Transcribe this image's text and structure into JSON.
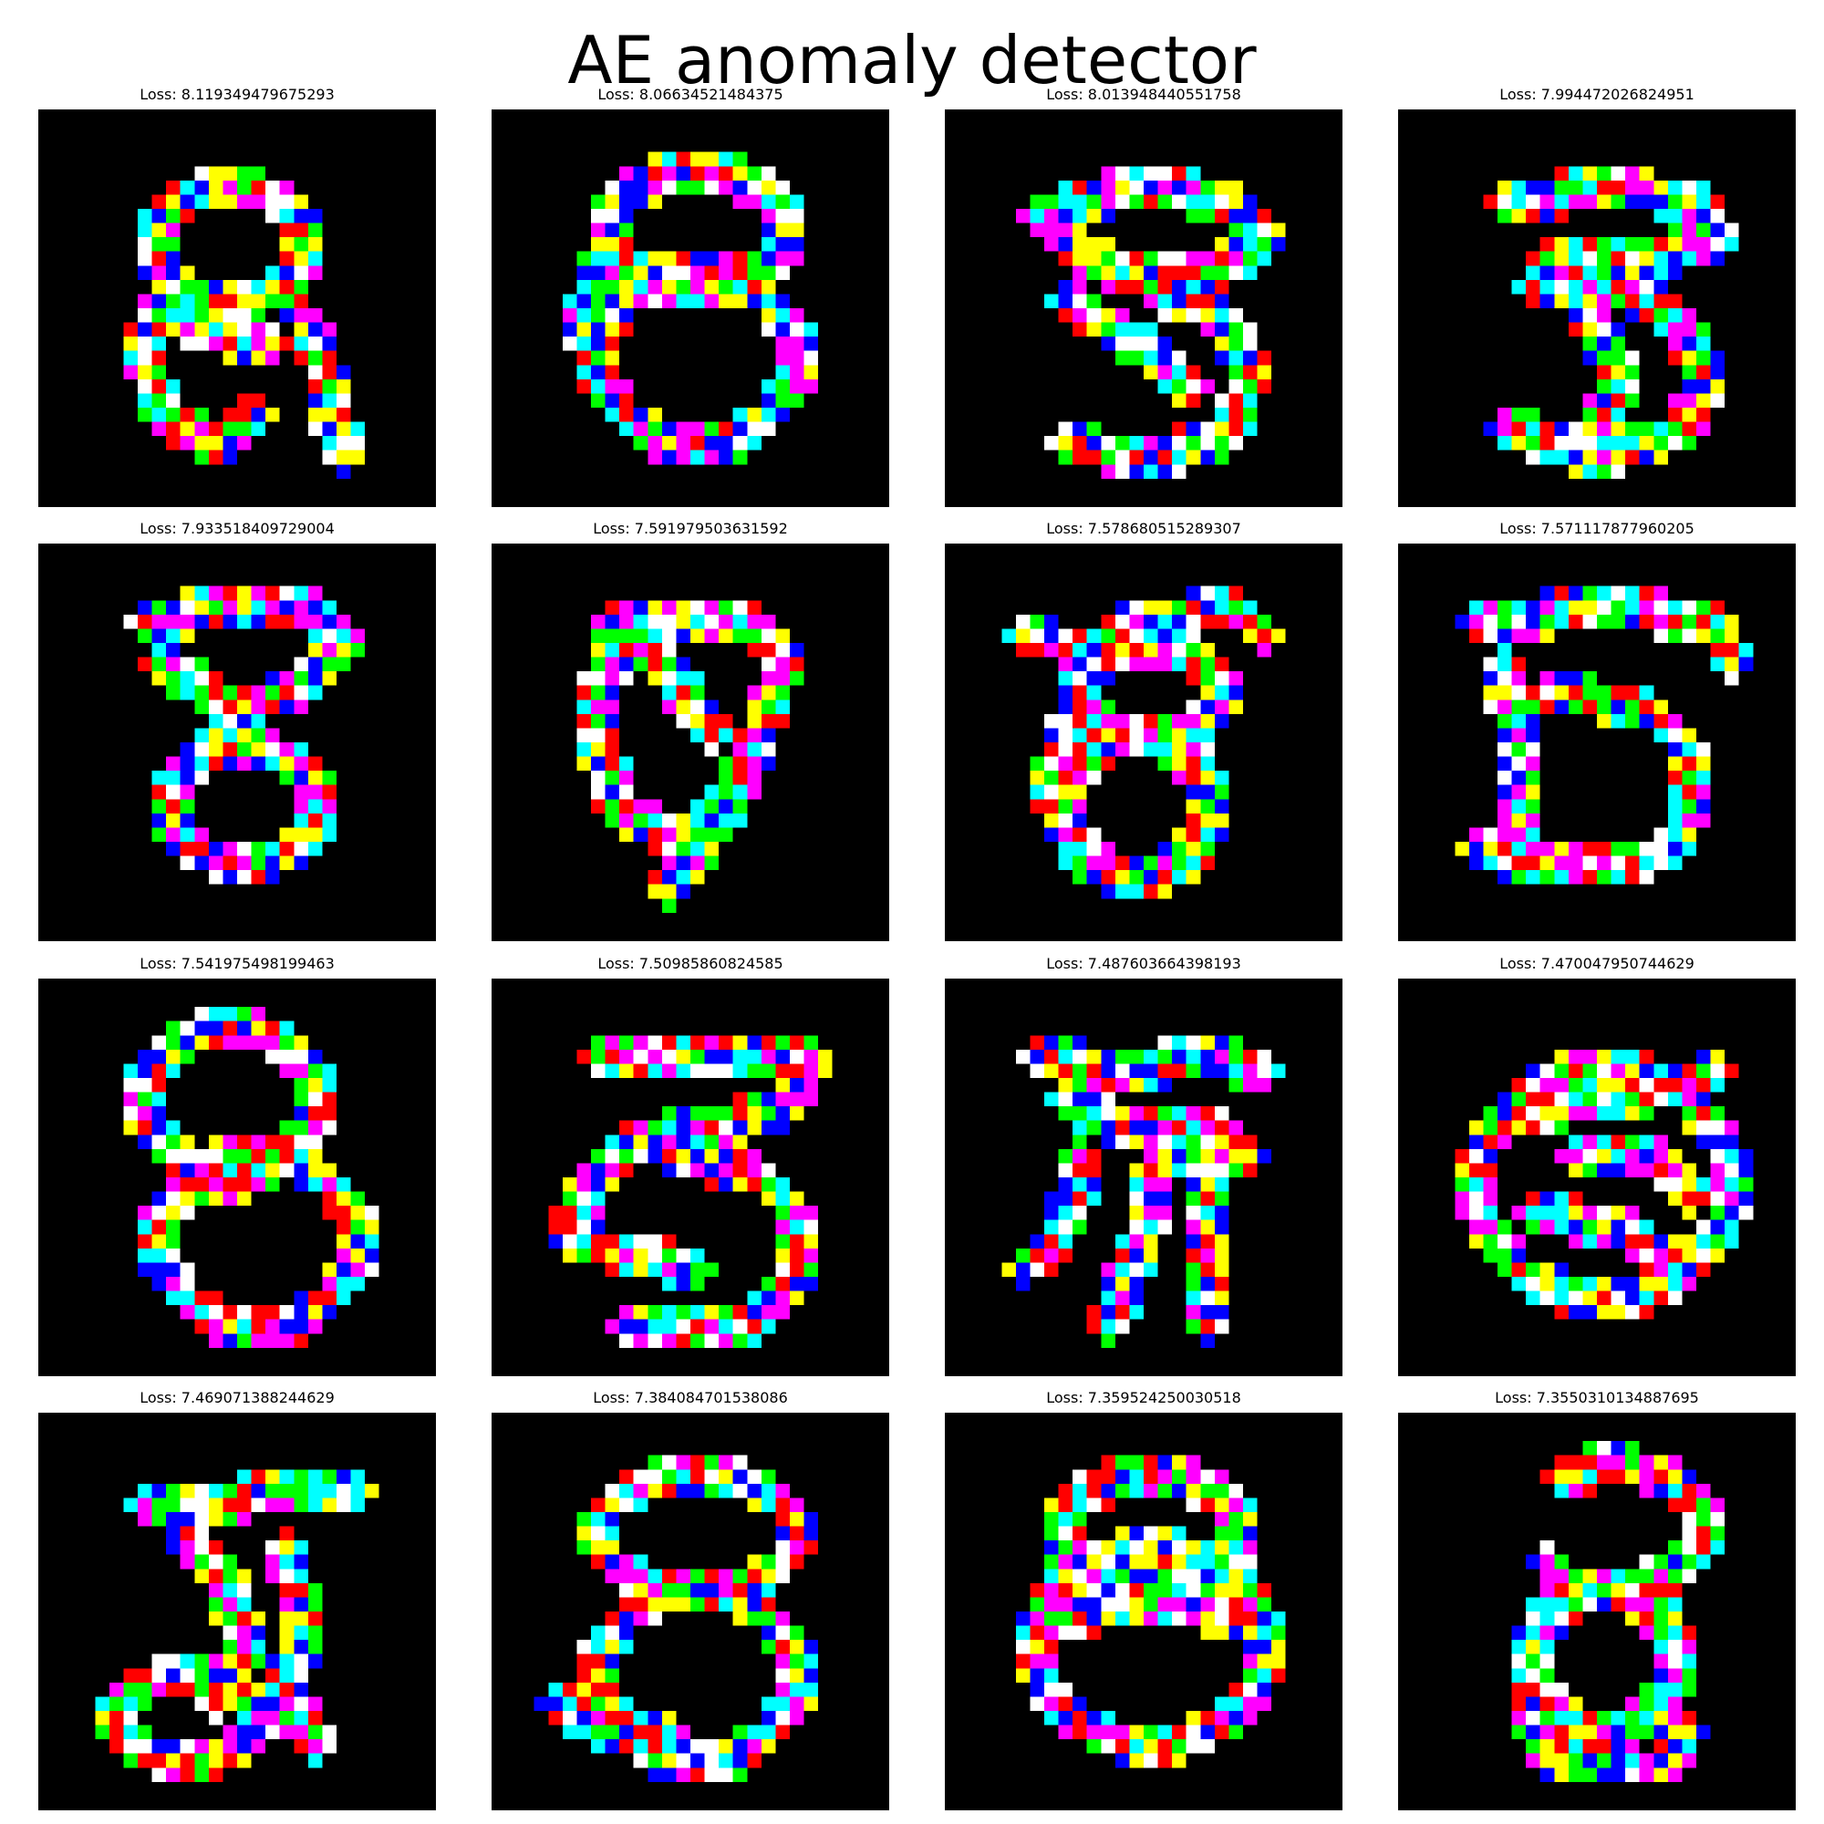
{
  "figure": {
    "title": "AE anomaly detector",
    "panels": [
      {
        "title": "Loss: 8.119349479675293"
      },
      {
        "title": "Loss: 8.06634521484375"
      },
      {
        "title": "Loss: 8.013948440551758"
      },
      {
        "title": "Loss: 7.994472026824951"
      },
      {
        "title": "Loss: 7.933518409729004"
      },
      {
        "title": "Loss: 7.591979503631592"
      },
      {
        "title": "Loss: 7.578680515289307"
      },
      {
        "title": "Loss: 7.571117877960205"
      },
      {
        "title": "Loss: 7.541975498199463"
      },
      {
        "title": "Loss: 7.50985860824585"
      },
      {
        "title": "Loss: 7.487603664398193"
      },
      {
        "title": "Loss: 7.470047950744629"
      },
      {
        "title": "Loss: 7.469071388244629"
      },
      {
        "title": "Loss: 7.384084701538086"
      },
      {
        "title": "Loss: 7.359524250030518"
      },
      {
        "title": "Loss: 7.3550310134887695"
      }
    ]
  },
  "colors": {
    "background": "#ffffff",
    "image_background": "#000000",
    "palette": [
      "#ff0000",
      "#00ff00",
      "#0000ff",
      "#ffff00",
      "#00ffff",
      "#ff00ff",
      "#ffffff"
    ]
  }
}
